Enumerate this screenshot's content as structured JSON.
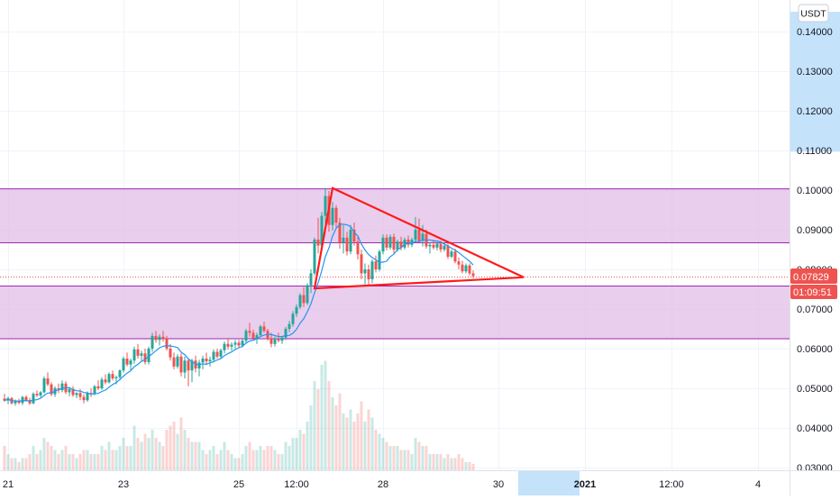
{
  "chart_data": {
    "type": "candlestick",
    "quote_currency": "USDT",
    "y_axis": {
      "min": 0.028,
      "max": 0.145,
      "ticks": [
        "0.14000",
        "0.13000",
        "0.12000",
        "0.11000",
        "0.10000",
        "0.09000",
        "0.08000",
        "0.07000",
        "0.06000",
        "0.05000",
        "0.04000",
        "0.03000"
      ],
      "tick_values": [
        0.14,
        0.13,
        0.12,
        0.11,
        0.1,
        0.09,
        0.08,
        0.07,
        0.06,
        0.05,
        0.04,
        0.03
      ],
      "scale": "linear",
      "grid": true
    },
    "x_axis": {
      "ticks": [
        {
          "label": "21",
          "bar": 1
        },
        {
          "label": "23",
          "bar": 33
        },
        {
          "label": "25",
          "bar": 65
        },
        {
          "label": "12:00",
          "bar": 81
        },
        {
          "label": "28",
          "bar": 105
        },
        {
          "label": "30",
          "bar": 137
        },
        {
          "label": "2021",
          "bar": 161
        },
        {
          "label": "12:00",
          "bar": 185
        },
        {
          "label": "4",
          "bar": 209
        }
      ],
      "highlight_bars": [
        143,
        160
      ],
      "grid": true
    },
    "last_price": {
      "label": "0.07829",
      "value": 0.07829,
      "countdown": "01:09:51",
      "color": "#ef5350"
    },
    "axis_highlight_range": [
      0.1097,
      0.145
    ],
    "zones": [
      {
        "from": 0.0867,
        "to": 0.1003,
        "color": "#e1bee7",
        "line": "#9c27b0"
      },
      {
        "from": 0.0625,
        "to": 0.0758,
        "color": "#e1bee7",
        "line": "#9c27b0"
      }
    ],
    "triangle": {
      "color": "#ff1a1a",
      "points": [
        [
          91,
          0.1005
        ],
        [
          144,
          0.078
        ],
        [
          86,
          0.0752
        ]
      ]
    },
    "colors": {
      "up": "#26a69a",
      "down": "#ef5350",
      "ma": "#2196f3"
    },
    "candles": [
      [
        0.0474,
        0.0486,
        0.0466,
        0.0469,
        3.0
      ],
      [
        0.0469,
        0.0479,
        0.046,
        0.0475,
        2.0
      ],
      [
        0.0475,
        0.0478,
        0.0459,
        0.0462,
        1.5
      ],
      [
        0.0462,
        0.0472,
        0.0456,
        0.0467,
        1.5
      ],
      [
        0.0467,
        0.0474,
        0.046,
        0.0463,
        1.0
      ],
      [
        0.0463,
        0.0481,
        0.0458,
        0.0478,
        1.5
      ],
      [
        0.0478,
        0.0482,
        0.0466,
        0.047,
        1.5
      ],
      [
        0.047,
        0.0476,
        0.0458,
        0.0462,
        2.0
      ],
      [
        0.0462,
        0.049,
        0.046,
        0.0486,
        3.0
      ],
      [
        0.0486,
        0.0495,
        0.0478,
        0.0482,
        2.0
      ],
      [
        0.0482,
        0.0493,
        0.0477,
        0.049,
        2.5
      ],
      [
        0.049,
        0.053,
        0.0487,
        0.0525,
        4.0
      ],
      [
        0.0525,
        0.054,
        0.0505,
        0.051,
        3.5
      ],
      [
        0.051,
        0.0515,
        0.048,
        0.0485,
        3.0
      ],
      [
        0.0485,
        0.0505,
        0.0478,
        0.05,
        2.5
      ],
      [
        0.05,
        0.0512,
        0.0488,
        0.0495,
        2.0
      ],
      [
        0.0495,
        0.052,
        0.049,
        0.0512,
        2.5
      ],
      [
        0.0512,
        0.0518,
        0.0485,
        0.049,
        3.0
      ],
      [
        0.049,
        0.0502,
        0.048,
        0.0498,
        2.0
      ],
      [
        0.0498,
        0.0505,
        0.0478,
        0.0483,
        2.0
      ],
      [
        0.0483,
        0.049,
        0.0475,
        0.0488,
        1.5
      ],
      [
        0.0488,
        0.0498,
        0.047,
        0.0478,
        2.0
      ],
      [
        0.0478,
        0.0485,
        0.0462,
        0.047,
        2.5
      ],
      [
        0.047,
        0.0492,
        0.0466,
        0.0488,
        2.5
      ],
      [
        0.0488,
        0.05,
        0.0478,
        0.0485,
        2.0
      ],
      [
        0.0485,
        0.0508,
        0.0482,
        0.0505,
        2.0
      ],
      [
        0.0505,
        0.052,
        0.0495,
        0.05,
        2.0
      ],
      [
        0.05,
        0.0528,
        0.0496,
        0.0522,
        3.0
      ],
      [
        0.0522,
        0.0535,
        0.051,
        0.0515,
        2.5
      ],
      [
        0.0515,
        0.054,
        0.0512,
        0.0536,
        3.5
      ],
      [
        0.0536,
        0.0545,
        0.052,
        0.0525,
        2.5
      ],
      [
        0.0525,
        0.0532,
        0.051,
        0.0528,
        2.5
      ],
      [
        0.0528,
        0.0548,
        0.052,
        0.0545,
        3.0
      ],
      [
        0.0545,
        0.058,
        0.054,
        0.0575,
        4.0
      ],
      [
        0.0575,
        0.059,
        0.0555,
        0.056,
        3.0
      ],
      [
        0.056,
        0.0575,
        0.0545,
        0.057,
        3.0
      ],
      [
        0.057,
        0.0605,
        0.0562,
        0.0598,
        5.5
      ],
      [
        0.0598,
        0.0612,
        0.0575,
        0.0582,
        4.0
      ],
      [
        0.0582,
        0.0595,
        0.0568,
        0.0588,
        3.5
      ],
      [
        0.0588,
        0.06,
        0.056,
        0.0566,
        4.5
      ],
      [
        0.0566,
        0.0605,
        0.056,
        0.06,
        4.0
      ],
      [
        0.06,
        0.064,
        0.0592,
        0.0632,
        5.0
      ],
      [
        0.0632,
        0.0645,
        0.0615,
        0.0622,
        4.0
      ],
      [
        0.0622,
        0.0636,
        0.0608,
        0.063,
        3.5
      ],
      [
        0.063,
        0.0645,
        0.0618,
        0.0625,
        3.0
      ],
      [
        0.0625,
        0.0632,
        0.0595,
        0.06,
        5.0
      ],
      [
        0.06,
        0.0612,
        0.057,
        0.0578,
        5.5
      ],
      [
        0.0578,
        0.059,
        0.0548,
        0.0555,
        6.0
      ],
      [
        0.0555,
        0.0586,
        0.055,
        0.058,
        4.5
      ],
      [
        0.058,
        0.0588,
        0.053,
        0.054,
        6.5
      ],
      [
        0.054,
        0.058,
        0.0525,
        0.057,
        5.0
      ],
      [
        0.057,
        0.0575,
        0.0505,
        0.0545,
        4.0
      ],
      [
        0.0545,
        0.0575,
        0.0515,
        0.057,
        3.5
      ],
      [
        0.057,
        0.0582,
        0.054,
        0.055,
        3.5
      ],
      [
        0.055,
        0.0572,
        0.053,
        0.0565,
        3.5
      ],
      [
        0.0565,
        0.0582,
        0.0548,
        0.0575,
        2.5
      ],
      [
        0.0575,
        0.059,
        0.056,
        0.0568,
        2.0
      ],
      [
        0.0568,
        0.058,
        0.0555,
        0.0572,
        2.5
      ],
      [
        0.0572,
        0.0598,
        0.0565,
        0.0592,
        3.0
      ],
      [
        0.0592,
        0.06,
        0.0575,
        0.058,
        2.0
      ],
      [
        0.058,
        0.06,
        0.0575,
        0.0596,
        2.5
      ],
      [
        0.0596,
        0.0618,
        0.0588,
        0.0612,
        3.5
      ],
      [
        0.0612,
        0.0625,
        0.0598,
        0.0605,
        2.5
      ],
      [
        0.0605,
        0.0616,
        0.0595,
        0.061,
        2.0
      ],
      [
        0.061,
        0.0622,
        0.06,
        0.0615,
        1.5
      ],
      [
        0.0615,
        0.0622,
        0.0602,
        0.0608,
        1.5
      ],
      [
        0.0608,
        0.0625,
        0.0603,
        0.062,
        2.0
      ],
      [
        0.062,
        0.065,
        0.0615,
        0.0645,
        3.0
      ],
      [
        0.0645,
        0.0665,
        0.063,
        0.064,
        3.5
      ],
      [
        0.064,
        0.0648,
        0.0622,
        0.0626,
        2.5
      ],
      [
        0.0626,
        0.064,
        0.0612,
        0.0634,
        2.5
      ],
      [
        0.0634,
        0.066,
        0.063,
        0.0656,
        3.0
      ],
      [
        0.0656,
        0.0668,
        0.064,
        0.0645,
        2.5
      ],
      [
        0.0645,
        0.065,
        0.062,
        0.0625,
        3.0
      ],
      [
        0.0625,
        0.064,
        0.0603,
        0.0612,
        3.0
      ],
      [
        0.0612,
        0.063,
        0.0605,
        0.0626,
        2.5
      ],
      [
        0.0626,
        0.064,
        0.0616,
        0.062,
        2.0
      ],
      [
        0.062,
        0.0632,
        0.0612,
        0.0628,
        2.0
      ],
      [
        0.0628,
        0.0655,
        0.0622,
        0.065,
        3.5
      ],
      [
        0.065,
        0.067,
        0.0642,
        0.0662,
        3.0
      ],
      [
        0.0662,
        0.0695,
        0.0655,
        0.0688,
        4.0
      ],
      [
        0.0688,
        0.0712,
        0.068,
        0.0705,
        4.0
      ],
      [
        0.0705,
        0.074,
        0.07,
        0.0735,
        5.0
      ],
      [
        0.0735,
        0.0755,
        0.0705,
        0.0715,
        4.5
      ],
      [
        0.0715,
        0.0765,
        0.071,
        0.076,
        6.0
      ],
      [
        0.076,
        0.08,
        0.074,
        0.079,
        8.0
      ],
      [
        0.079,
        0.088,
        0.0785,
        0.0875,
        11.0
      ],
      [
        0.0875,
        0.093,
        0.084,
        0.086,
        10.0
      ],
      [
        0.086,
        0.0945,
        0.0855,
        0.0935,
        13.0
      ],
      [
        0.0935,
        0.1005,
        0.0915,
        0.0985,
        13.5
      ],
      [
        0.0985,
        0.0998,
        0.0895,
        0.0912,
        11.0
      ],
      [
        0.0912,
        0.097,
        0.0898,
        0.0955,
        9.0
      ],
      [
        0.0955,
        0.0962,
        0.0905,
        0.0918,
        8.0
      ],
      [
        0.0918,
        0.093,
        0.0852,
        0.0868,
        9.5
      ],
      [
        0.0868,
        0.0912,
        0.084,
        0.088,
        7.0
      ],
      [
        0.088,
        0.0895,
        0.0835,
        0.0845,
        6.5
      ],
      [
        0.0845,
        0.0912,
        0.0838,
        0.09,
        7.5
      ],
      [
        0.09,
        0.0918,
        0.086,
        0.087,
        6.0
      ],
      [
        0.087,
        0.0882,
        0.0825,
        0.0838,
        7.0
      ],
      [
        0.0838,
        0.085,
        0.0775,
        0.079,
        8.5
      ],
      [
        0.079,
        0.0815,
        0.0762,
        0.08,
        6.0
      ],
      [
        0.08,
        0.0812,
        0.076,
        0.0775,
        7.5
      ],
      [
        0.0775,
        0.0825,
        0.0765,
        0.082,
        6.5
      ],
      [
        0.082,
        0.0835,
        0.0792,
        0.08,
        5.0
      ],
      [
        0.08,
        0.085,
        0.0795,
        0.0845,
        4.5
      ],
      [
        0.0845,
        0.0888,
        0.0838,
        0.088,
        4.0
      ],
      [
        0.088,
        0.0888,
        0.0848,
        0.0855,
        3.5
      ],
      [
        0.0855,
        0.0888,
        0.085,
        0.0882,
        3.0
      ],
      [
        0.0882,
        0.089,
        0.084,
        0.085,
        3.0
      ],
      [
        0.085,
        0.0875,
        0.0845,
        0.087,
        3.0
      ],
      [
        0.087,
        0.0882,
        0.0848,
        0.0855,
        2.5
      ],
      [
        0.0855,
        0.088,
        0.085,
        0.0875,
        2.5
      ],
      [
        0.0875,
        0.0885,
        0.0855,
        0.0862,
        2.5
      ],
      [
        0.0862,
        0.088,
        0.0856,
        0.0875,
        2.0
      ],
      [
        0.0875,
        0.0932,
        0.0868,
        0.09,
        4.0
      ],
      [
        0.09,
        0.0928,
        0.0868,
        0.0872,
        3.5
      ],
      [
        0.0872,
        0.0912,
        0.0858,
        0.089,
        3.0
      ],
      [
        0.089,
        0.09,
        0.0852,
        0.0858,
        3.0
      ],
      [
        0.0858,
        0.0868,
        0.084,
        0.0862,
        2.0
      ],
      [
        0.0862,
        0.0875,
        0.085,
        0.0855,
        2.0
      ],
      [
        0.0855,
        0.087,
        0.0848,
        0.0865,
        2.0
      ],
      [
        0.0865,
        0.0872,
        0.0843,
        0.085,
        2.0
      ],
      [
        0.085,
        0.0868,
        0.0845,
        0.086,
        1.5
      ],
      [
        0.086,
        0.0866,
        0.0826,
        0.0832,
        2.0
      ],
      [
        0.0832,
        0.085,
        0.0828,
        0.0845,
        1.5
      ],
      [
        0.0845,
        0.0852,
        0.0815,
        0.082,
        1.5
      ],
      [
        0.082,
        0.083,
        0.08,
        0.0812,
        2.0
      ],
      [
        0.0812,
        0.0822,
        0.079,
        0.0795,
        1.5
      ],
      [
        0.0795,
        0.0815,
        0.079,
        0.081,
        1.0
      ],
      [
        0.081,
        0.0815,
        0.0785,
        0.079,
        1.0
      ],
      [
        0.079,
        0.0798,
        0.0778,
        0.0783,
        0.8
      ]
    ]
  }
}
